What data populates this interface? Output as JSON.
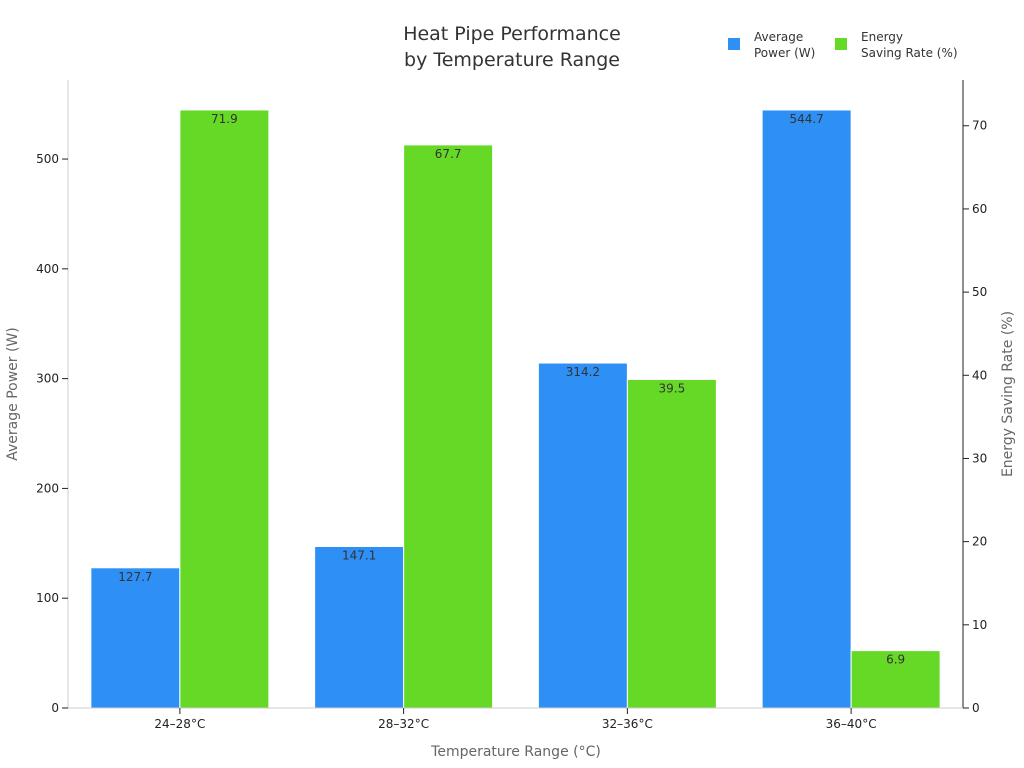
{
  "chart_data": {
    "type": "bar",
    "title_lines": [
      "Heat Pipe Performance",
      "by Temperature Range"
    ],
    "xlabel": "Temperature Range (°C)",
    "ylabel_left": "Average Power (W)",
    "ylabel_right": "Energy Saving Rate (%)",
    "categories": [
      "24–28°C",
      "28–32°C",
      "32–36°C",
      "36–40°C"
    ],
    "ylim_left": [
      0,
      572
    ],
    "ylim_right": [
      0,
      75.5
    ],
    "yticks_left": [
      0,
      100,
      200,
      300,
      400,
      500
    ],
    "yticks_right": [
      0,
      10,
      20,
      30,
      40,
      50,
      60,
      70
    ],
    "grid": false,
    "legend_position": "top-right",
    "series": [
      {
        "name": "Average Power (W)",
        "legend_lines": [
          "Average",
          "Power (W)"
        ],
        "axis": "left",
        "color": "#2e8ff5",
        "values": [
          127.7,
          147.1,
          314.2,
          544.7
        ],
        "labels": [
          "127.7",
          "147.1",
          "314.2",
          "544.7"
        ]
      },
      {
        "name": "Energy Saving Rate (%)",
        "legend_lines": [
          "Energy",
          "Saving Rate (%)"
        ],
        "axis": "right",
        "color": "#66d927",
        "values": [
          71.9,
          67.7,
          39.5,
          6.9
        ],
        "labels": [
          "71.9",
          "67.7",
          "39.5",
          "6.9"
        ]
      }
    ]
  }
}
